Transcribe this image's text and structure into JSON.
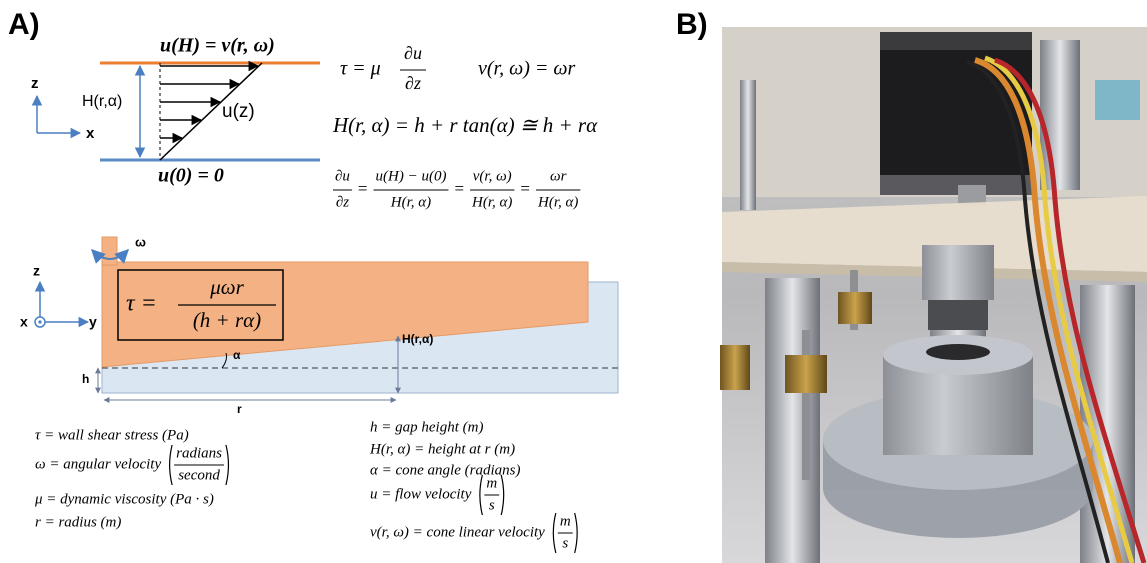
{
  "panel_a": {
    "label": "A)",
    "profile": {
      "top_eq": "u(H) = v(r, ω)",
      "bottom_eq": "u(0) = 0",
      "height_label": "H(r,α)",
      "profile_label": "u(z)",
      "axis_z": "z",
      "axis_x": "x"
    },
    "equations": {
      "shear": {
        "lhs": "τ  = μ",
        "num": "∂u",
        "den": "∂z"
      },
      "velocity": "v(r, ω) = ωr",
      "height": "H(r, α) = h + r tan(α) ≅ h + rα",
      "gradient": {
        "sep": "=",
        "terms": [
          {
            "num": "∂u",
            "den": "∂z"
          },
          {
            "num": "u(H) − u(0)",
            "den": "H(r, α)"
          },
          {
            "num": "v(r, ω)",
            "den": "H(r, α)"
          },
          {
            "num": "ωr",
            "den": "H(r, α)"
          }
        ]
      }
    },
    "cone": {
      "omega": "ω",
      "axis_z": "z",
      "axis_x": "x",
      "axis_y": "y",
      "formula": {
        "lhs": "τ =",
        "num": "μωr",
        "den": "(h + rα)"
      },
      "alpha": "α",
      "h_label": "h",
      "H_label": "H(r,α)",
      "r_label": "r"
    },
    "legend_left": [
      {
        "text": "τ = wall shear stress (Pa)"
      },
      {
        "text": "ω = angular velocity",
        "num": "radians",
        "den": "second"
      },
      {
        "text": "μ = dynamic viscosity (Pa · s)"
      },
      {
        "text": "r = radius (m)"
      }
    ],
    "legend_right": [
      {
        "text": "h = gap height (m)"
      },
      {
        "text": "H(r, α) = height at r (m)"
      },
      {
        "text": "α = cone angle (radians)"
      },
      {
        "text": "u = flow velocity",
        "num": "m",
        "den": "s"
      },
      {
        "text": "v(r, ω) = cone linear velocity",
        "num": "m",
        "den": "s"
      }
    ]
  },
  "panel_b": {
    "label": "B)"
  }
}
